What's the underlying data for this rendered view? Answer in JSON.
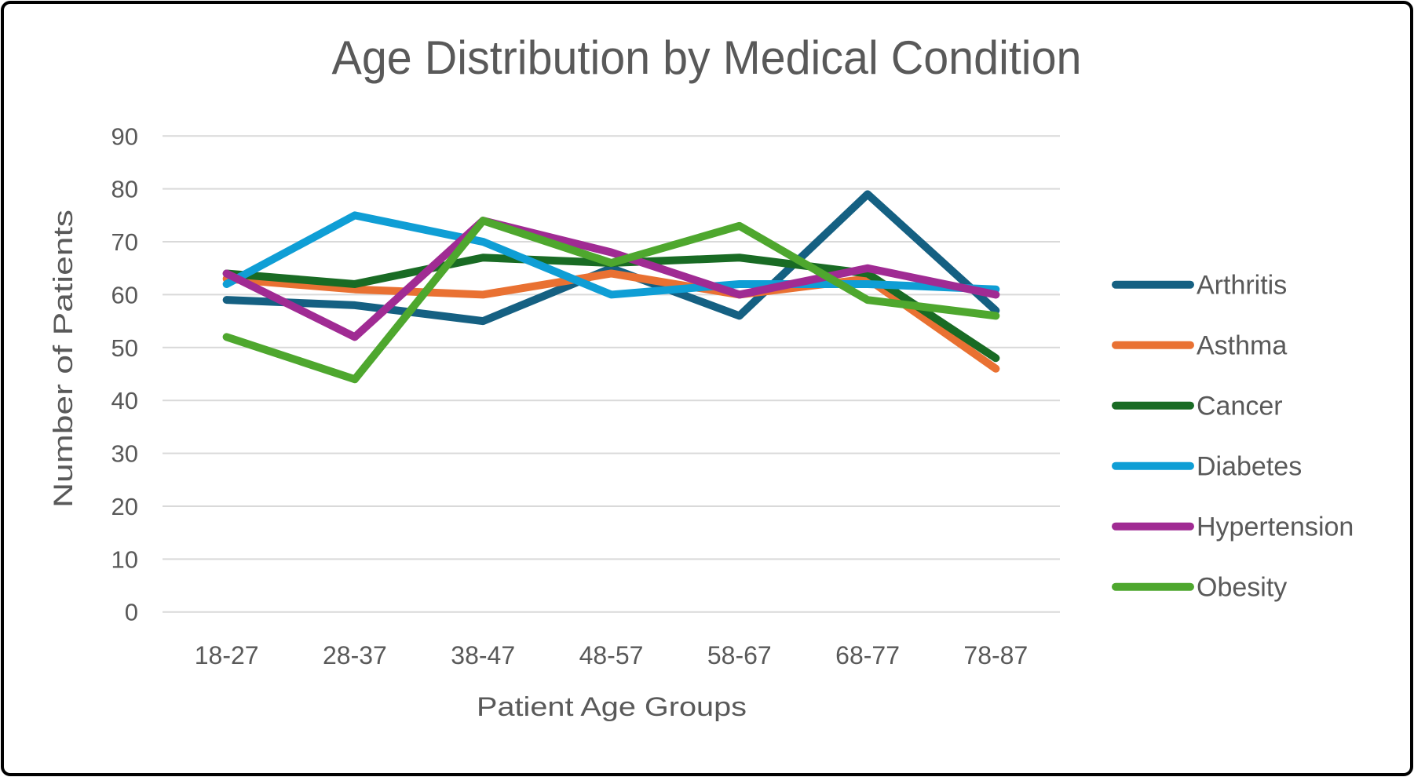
{
  "frame": {
    "background": "#FFFFFF",
    "border_color": "#000000"
  },
  "chart_data": {
    "type": "line",
    "title": "Age Distribution by Medical Condition",
    "xlabel": "Patient Age Groups",
    "ylabel": "Number of Patients",
    "categories": [
      "18-27",
      "28-37",
      "38-47",
      "48-57",
      "58-67",
      "68-77",
      "78-87"
    ],
    "series": [
      {
        "name": "Arthritis",
        "color": "#156082",
        "values": [
          59,
          58,
          55,
          65,
          56,
          79,
          57
        ]
      },
      {
        "name": "Asthma",
        "color": "#E97132",
        "values": [
          63,
          61,
          60,
          64,
          60,
          63,
          46
        ]
      },
      {
        "name": "Cancer",
        "color": "#196B24",
        "values": [
          64,
          62,
          67,
          66,
          67,
          64,
          48
        ]
      },
      {
        "name": "Diabetes",
        "color": "#0F9ED5",
        "values": [
          62,
          75,
          70,
          60,
          62,
          62,
          61
        ]
      },
      {
        "name": "Hypertension",
        "color": "#A02B93",
        "values": [
          64,
          52,
          74,
          68,
          60,
          65,
          60
        ]
      },
      {
        "name": "Obesity",
        "color": "#4EA72E",
        "values": [
          52,
          44,
          74,
          66,
          73,
          59,
          56
        ]
      }
    ],
    "ylim": [
      0,
      90
    ],
    "ytick_step": 10,
    "grid": true,
    "legend_position": "right",
    "gridline_color": "#D9D9D9",
    "text_color": "#595959"
  }
}
